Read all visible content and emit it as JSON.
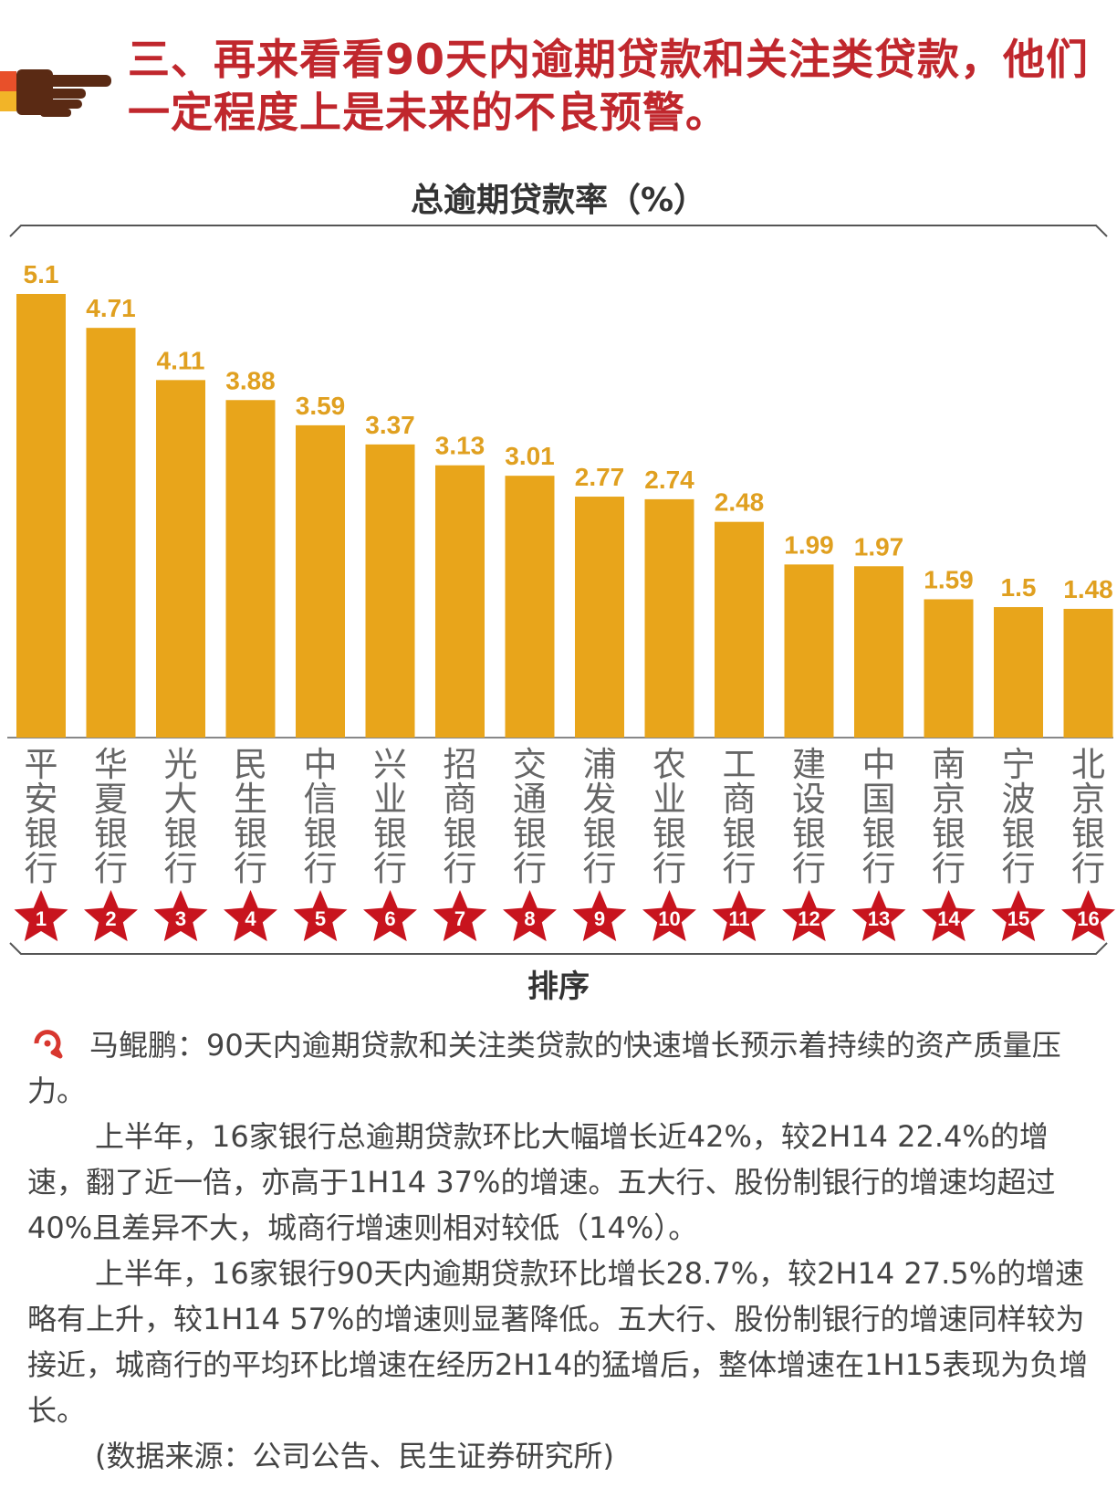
{
  "headline": "三、再来看看90天内逾期贷款和关注类贷款，他们一定程度上是未来的不良预警。",
  "colors": {
    "accent": "#c0272d",
    "bar": "#e8a51b",
    "value_label": "#e0a020",
    "rank_star": "#c8141e"
  },
  "chart_data": {
    "type": "bar",
    "title": "总逾期贷款率（%）",
    "xlabel": "排序",
    "ylabel": "",
    "ylim": [
      0,
      5.1
    ],
    "grid": false,
    "categories": [
      "平安银行",
      "华夏银行",
      "光大银行",
      "民生银行",
      "中信银行",
      "兴业银行",
      "招商银行",
      "交通银行",
      "浦发银行",
      "农业银行",
      "工商银行",
      "建设银行",
      "中国银行",
      "南京银行",
      "宁波银行",
      "北京银行"
    ],
    "values": [
      5.1,
      4.71,
      4.11,
      3.88,
      3.59,
      3.37,
      3.13,
      3.01,
      2.77,
      2.74,
      2.48,
      1.99,
      1.97,
      1.59,
      1.5,
      1.48
    ],
    "value_labels": [
      "5.1",
      "4.71",
      "4.11",
      "3.88",
      "3.59",
      "3.37",
      "3.13",
      "3.01",
      "2.77",
      "2.74",
      "2.48",
      "1.99",
      "1.97",
      "1.59",
      "1.5",
      "1.48"
    ],
    "ranks": [
      "1",
      "2",
      "3",
      "4",
      "5",
      "6",
      "7",
      "8",
      "9",
      "10",
      "11",
      "12",
      "13",
      "14",
      "15",
      "16"
    ]
  },
  "commentary": {
    "quote": "马鲲鹏：90天内逾期贷款和关注类贷款的快速增长预示着持续的资产质量压力。",
    "paragraphs": [
      "上半年，16家银行总逾期贷款环比大幅增长近42%，较2H14 22.4%的增速，翻了近一倍，亦高于1H14 37%的增速。五大行、股份制银行的增速均超过40%且差异不大，城商行增速则相对较低（14%）。",
      "上半年，16家银行90天内逾期贷款环比增长28.7%，较2H14 27.5%的增速略有上升，较1H14 57%的增速则显著降低。五大行、股份制银行的增速同样较为接近，城商行的平均环比增速在经历2H14的猛增后，整体增速在1H15表现为负增长。",
      "(数据来源：公司公告、民生证券研究所)"
    ]
  }
}
